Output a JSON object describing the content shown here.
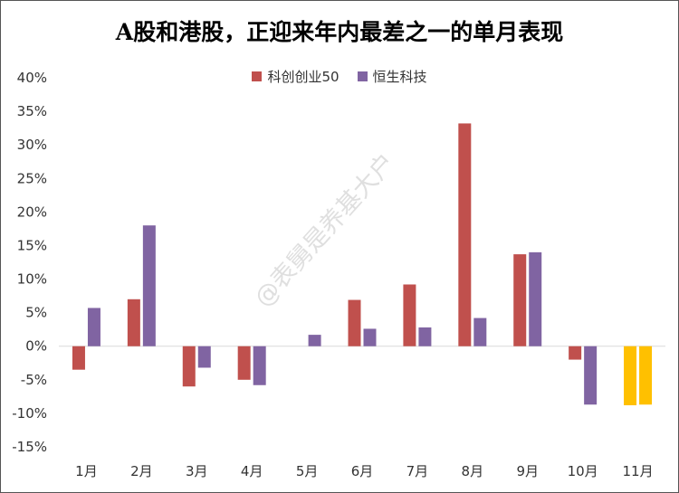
{
  "chart_data": {
    "type": "bar",
    "title": "A股和港股，正迎来年内最差之一的单月表现",
    "categories": [
      "1月",
      "2月",
      "3月",
      "4月",
      "5月",
      "6月",
      "7月",
      "8月",
      "9月",
      "10月",
      "11月"
    ],
    "series": [
      {
        "name": "科创创业50",
        "color": "#C0504D",
        "values": [
          -3.5,
          7.0,
          -6.0,
          -5.0,
          null,
          6.9,
          9.2,
          33.2,
          13.7,
          -2.0,
          -8.8
        ]
      },
      {
        "name": "恒生科技",
        "color": "#8064A2",
        "values": [
          5.7,
          18.0,
          -3.2,
          -5.8,
          1.7,
          2.6,
          2.8,
          4.2,
          14.0,
          -8.7,
          -8.7
        ]
      }
    ],
    "highlight": {
      "category": "11月",
      "color": "#FFC000"
    },
    "ylim": [
      -15,
      40
    ],
    "yticks": [
      "-15%",
      "-10%",
      "-5%",
      "0%",
      "5%",
      "10%",
      "15%",
      "20%",
      "25%",
      "30%",
      "35%",
      "40%"
    ],
    "grid": false,
    "legend_position": "top-center"
  },
  "watermark": "@表舅是养基大户"
}
